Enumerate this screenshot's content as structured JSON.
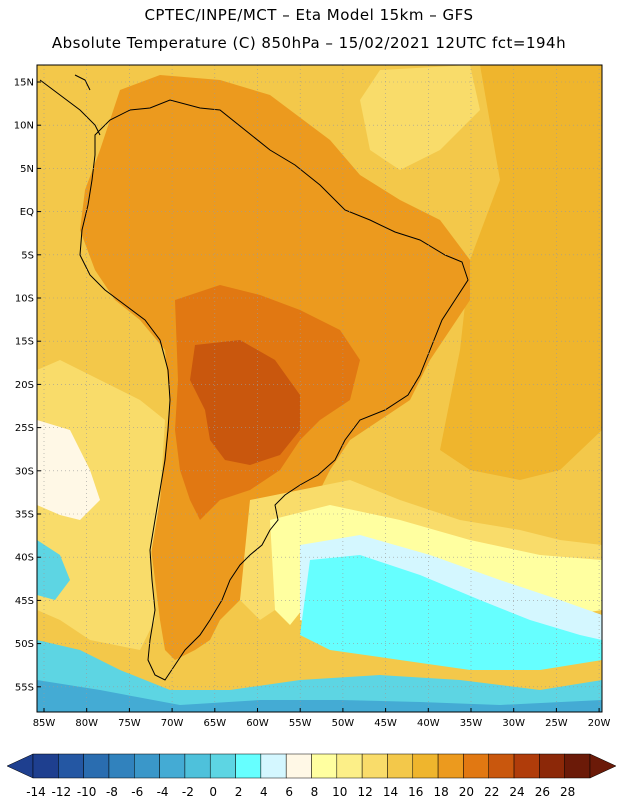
{
  "title_line1": "CPTEC/INPE/MCT –  Eta Model 15km – GFS",
  "title_line2": "Absolute Temperature (C) 850hPa – 15/02/2021 12UTC fct=194h",
  "lat_labels": [
    "15N",
    "10N",
    "5N",
    "EQ",
    "5S",
    "10S",
    "15S",
    "20S",
    "25S",
    "30S",
    "35S",
    "40S",
    "45S",
    "50S",
    "55S"
  ],
  "lon_labels": [
    "85W",
    "80W",
    "75W",
    "70W",
    "65W",
    "60W",
    "55W",
    "50W",
    "45W",
    "40W",
    "35W",
    "30W",
    "25W",
    "20W"
  ],
  "colorbar": {
    "labels": [
      "-14",
      "-12",
      "-10",
      "-8",
      "-6",
      "-4",
      "-2",
      "0",
      "2",
      "4",
      "6",
      "8",
      "10",
      "12",
      "14",
      "16",
      "18",
      "20",
      "22",
      "24",
      "26",
      "28"
    ],
    "colors": [
      "#1e3f8f",
      "#2457a3",
      "#2a6db0",
      "#3182bd",
      "#3a97c9",
      "#44abd4",
      "#4ec1db",
      "#5dd5e3",
      "#66ffff",
      "#d4f7ff",
      "#fff8e6",
      "#ffffa0",
      "#fcef88",
      "#f9dc6a",
      "#f3c84a",
      "#efb52d",
      "#ec9a1e",
      "#e17812",
      "#c9570d",
      "#b03c0a",
      "#8c2808",
      "#6b1a08"
    ]
  },
  "regions": {
    "colors": {
      "ocean_warm": "#efb52d",
      "ocean_mid": "#f3c84a",
      "land": "#ec9a1e",
      "hot": "#e17812",
      "very_hot": "#c9570d",
      "mild": "#f9dc6a",
      "pale": "#ffffa0",
      "cream": "#fff8e6",
      "ice": "#d4f7ff",
      "cyan": "#66ffff",
      "cool": "#5dd5e3",
      "cold": "#44abd4",
      "colder": "#3182bd"
    }
  }
}
